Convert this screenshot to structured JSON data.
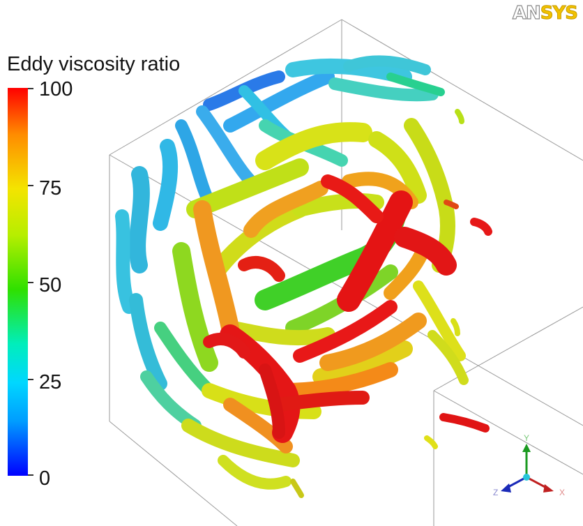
{
  "brand": {
    "logo_left": "AN",
    "logo_right": "SYS"
  },
  "legend": {
    "title": "Eddy viscosity ratio",
    "ticks": [
      "100",
      "75",
      "50",
      "25",
      "0"
    ],
    "min": 0,
    "max": 100
  },
  "axes_triad": {
    "x": "X",
    "y": "Y",
    "z": "Z"
  },
  "colors": {
    "red": "#e01010",
    "orange": "#f08a10",
    "yellow": "#d8e010",
    "green": "#40d020",
    "cyan": "#20c8dc",
    "blue": "#1060e0"
  }
}
